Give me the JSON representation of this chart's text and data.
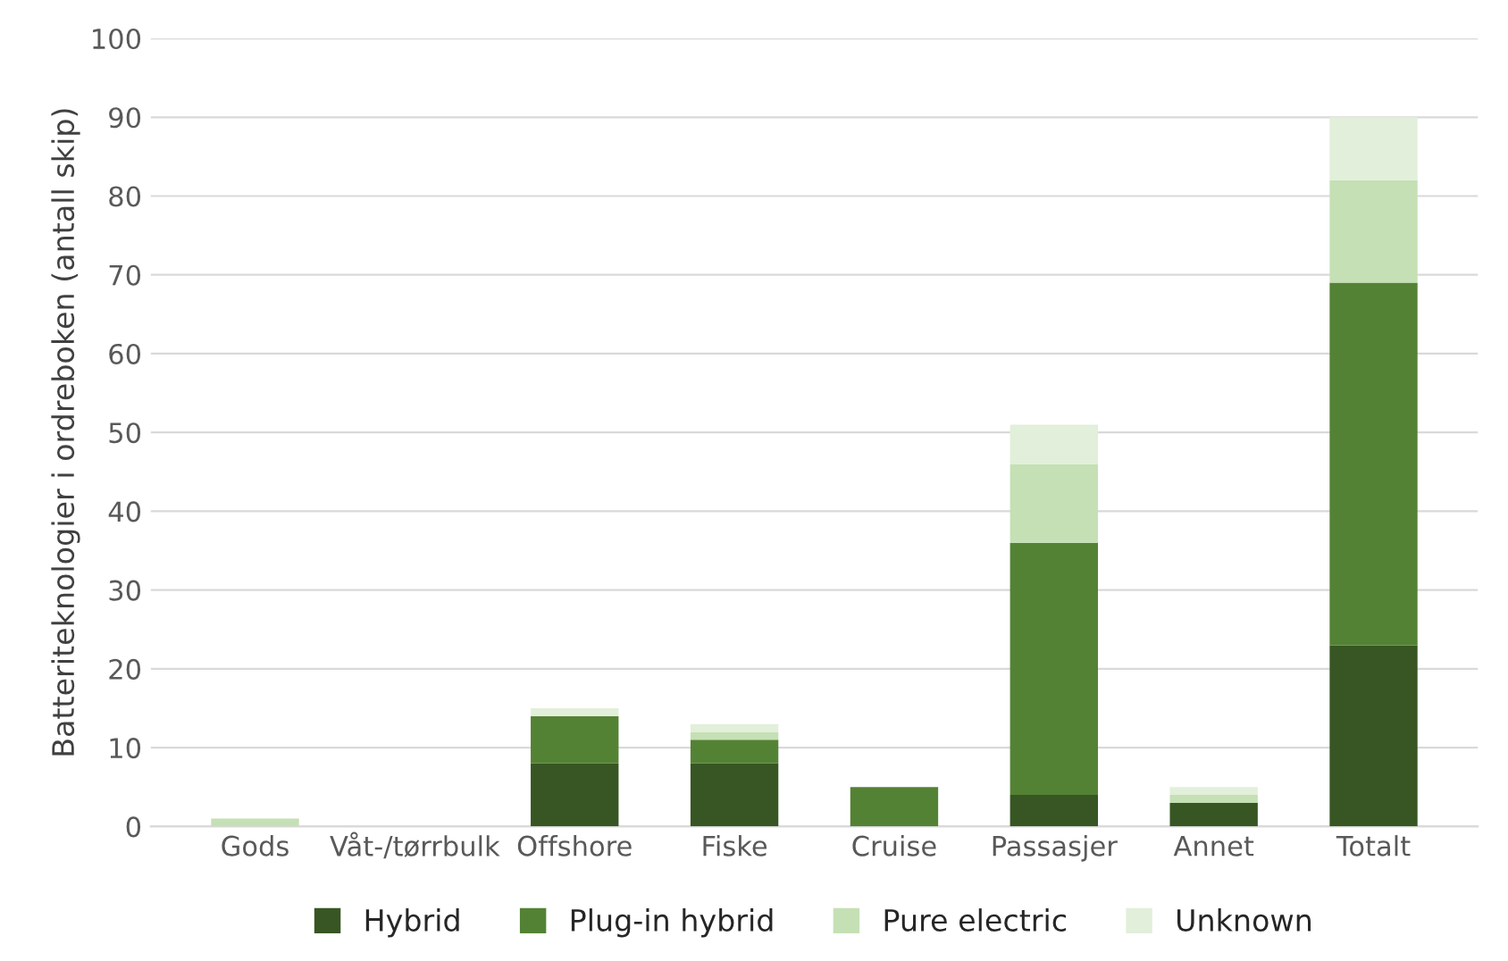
{
  "chart_data": {
    "type": "bar",
    "stacked": true,
    "ylabel": "Batteriteknologier i ordreboken (antall skip)",
    "categories": [
      "Gods",
      "Våt-/tørrbulk",
      "Offshore",
      "Fiske",
      "Cruise",
      "Passasjer",
      "Annet",
      "Totalt"
    ],
    "series": [
      {
        "name": "Hybrid",
        "color": "#375623",
        "values": [
          0,
          0,
          8,
          8,
          0,
          4,
          3,
          23
        ]
      },
      {
        "name": "Plug-in hybrid",
        "color": "#548235",
        "values": [
          0,
          0,
          6,
          3,
          5,
          32,
          0,
          46
        ]
      },
      {
        "name": "Pure electric",
        "color": "#c5e0b4",
        "values": [
          1,
          0,
          0,
          1,
          0,
          10,
          1,
          13
        ]
      },
      {
        "name": "Unknown",
        "color": "#e2efda",
        "values": [
          0,
          0,
          1,
          1,
          0,
          5,
          1,
          8
        ]
      }
    ],
    "ylim": [
      0,
      100
    ],
    "yticks": [
      0,
      10,
      20,
      30,
      40,
      50,
      60,
      70,
      80,
      90,
      100
    ],
    "grid": "y",
    "legend": "bottom"
  }
}
